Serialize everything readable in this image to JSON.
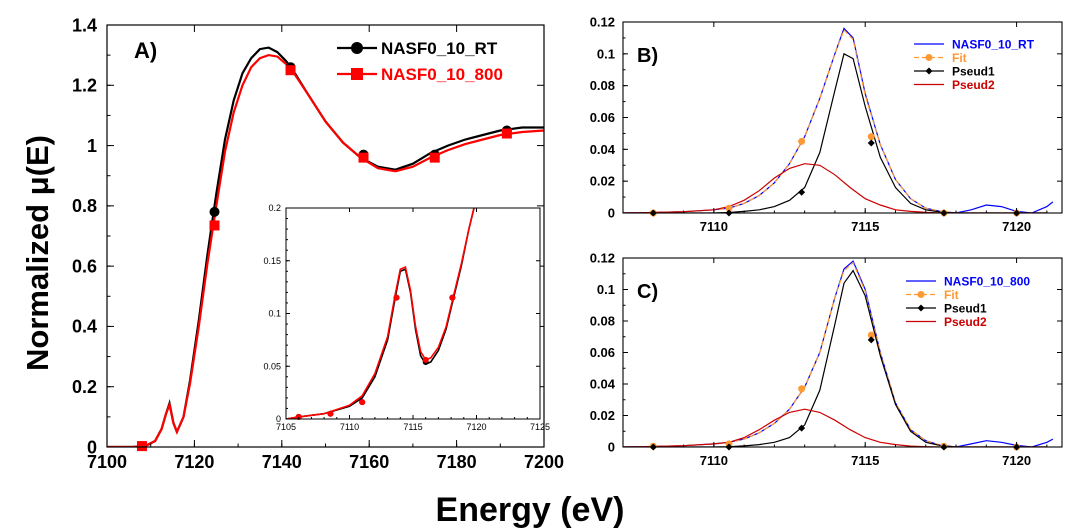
{
  "figure": {
    "ylabel": "Normalized μ(E)",
    "xlabel": "Energy (eV)"
  },
  "chart_data": [
    {
      "id": "A",
      "type": "line",
      "panel_label": "A)",
      "xlim": [
        7100,
        7200
      ],
      "ylim": [
        0,
        1.4
      ],
      "xticks": [
        7100,
        7120,
        7140,
        7160,
        7180,
        7200
      ],
      "yticks": [
        0,
        0.2,
        0.4,
        0.6,
        0.8,
        1,
        1.2,
        1.4
      ],
      "ytick_labels": [
        "0",
        "0.2",
        "0.4",
        "0.6",
        "0.8",
        "1",
        "1.2",
        "1.4"
      ],
      "legend_position": "top-right",
      "series": [
        {
          "name": "NASF0_10_RT",
          "color": "#000000",
          "marker": "circle",
          "x": [
            7100,
            7106,
            7109,
            7111,
            7112.5,
            7113.5,
            7114.3,
            7115.2,
            7116,
            7117.5,
            7119,
            7121,
            7123,
            7125,
            7127,
            7129,
            7131,
            7133,
            7135,
            7137,
            7139,
            7141,
            7143,
            7146,
            7150,
            7154,
            7158,
            7162,
            7166,
            7170,
            7174,
            7178,
            7182,
            7186,
            7190,
            7195,
            7200
          ],
          "y": [
            0,
            0,
            0.005,
            0.02,
            0.06,
            0.11,
            0.145,
            0.08,
            0.05,
            0.1,
            0.22,
            0.42,
            0.64,
            0.84,
            1.02,
            1.15,
            1.24,
            1.29,
            1.32,
            1.325,
            1.31,
            1.28,
            1.24,
            1.17,
            1.08,
            1.01,
            0.96,
            0.93,
            0.92,
            0.94,
            0.975,
            1.0,
            1.02,
            1.035,
            1.05,
            1.06,
            1.06
          ],
          "markers": [
            [
              7108,
              0.003
            ],
            [
              7124.6,
              0.78
            ],
            [
              7142,
              1.26
            ],
            [
              7158.7,
              0.97
            ],
            [
              7175,
              0.97
            ],
            [
              7191.5,
              1.05
            ]
          ]
        },
        {
          "name": "NASF0_10_800",
          "color": "#ff0000",
          "marker": "square",
          "x": [
            7100,
            7106,
            7109,
            7111,
            7112.5,
            7113.5,
            7114.3,
            7115.2,
            7116,
            7117.5,
            7119,
            7121,
            7123,
            7125,
            7127,
            7129,
            7131,
            7133,
            7135,
            7137,
            7139,
            7141,
            7143,
            7146,
            7150,
            7154,
            7158,
            7162,
            7166,
            7170,
            7174,
            7178,
            7182,
            7186,
            7190,
            7195,
            7200
          ],
          "y": [
            0,
            0,
            0.005,
            0.02,
            0.06,
            0.11,
            0.14,
            0.08,
            0.05,
            0.1,
            0.21,
            0.4,
            0.61,
            0.8,
            0.98,
            1.11,
            1.2,
            1.26,
            1.29,
            1.3,
            1.295,
            1.27,
            1.235,
            1.17,
            1.08,
            1.01,
            0.96,
            0.925,
            0.915,
            0.93,
            0.96,
            0.985,
            1.005,
            1.02,
            1.035,
            1.045,
            1.05
          ],
          "markers": [
            [
              7108,
              0.003
            ],
            [
              7124.6,
              0.735
            ],
            [
              7142,
              1.25
            ],
            [
              7158.7,
              0.96
            ],
            [
              7175,
              0.96
            ],
            [
              7191.5,
              1.04
            ]
          ]
        }
      ],
      "inset": {
        "type": "line",
        "xlim": [
          7105,
          7125
        ],
        "ylim": [
          0,
          0.2
        ],
        "xticks": [
          7105,
          7110,
          7115,
          7120,
          7125
        ],
        "yticks": [
          0,
          0.05,
          0.1,
          0.15,
          0.2
        ],
        "ytick_labels": [
          "0",
          "0.05",
          "0.1",
          "0.15",
          "0.2"
        ],
        "series": [
          {
            "name": "NASF0_10_RT",
            "color": "#000000",
            "x": [
              7105,
              7106,
              7108,
              7110,
              7111,
              7112,
              7113,
              7113.6,
              7114.0,
              7114.4,
              7114.8,
              7115.2,
              7115.6,
              7116.0,
              7116.4,
              7117,
              7117.6,
              7118.2,
              7118.8,
              7119.4,
              7119.8
            ],
            "y": [
              0,
              0.002,
              0.005,
              0.012,
              0.02,
              0.04,
              0.075,
              0.115,
              0.14,
              0.142,
              0.12,
              0.085,
              0.06,
              0.052,
              0.054,
              0.065,
              0.085,
              0.115,
              0.145,
              0.18,
              0.2
            ],
            "markers": [
              [
                7106,
                0.002
              ],
              [
                7108.5,
                0.005
              ],
              [
                7111,
                0.016
              ],
              [
                7113.7,
                0.115
              ],
              [
                7116,
                0.054
              ],
              [
                7118.1,
                0.115
              ]
            ]
          },
          {
            "name": "NASF0_10_800",
            "color": "#ff0000",
            "x": [
              7105,
              7106,
              7108,
              7110,
              7111,
              7112,
              7113,
              7113.6,
              7114.0,
              7114.4,
              7114.8,
              7115.2,
              7115.6,
              7116.0,
              7116.4,
              7117,
              7117.6,
              7118.2,
              7118.8,
              7119.4,
              7119.8
            ],
            "y": [
              0,
              0.002,
              0.005,
              0.013,
              0.022,
              0.043,
              0.078,
              0.118,
              0.142,
              0.144,
              0.122,
              0.088,
              0.064,
              0.056,
              0.058,
              0.068,
              0.087,
              0.117,
              0.147,
              0.18,
              0.2
            ],
            "markers": [
              [
                7106,
                0.002
              ],
              [
                7108.5,
                0.005
              ],
              [
                7111,
                0.016
              ],
              [
                7113.7,
                0.115
              ],
              [
                7116,
                0.056
              ],
              [
                7118.1,
                0.115
              ]
            ]
          }
        ]
      }
    },
    {
      "id": "B",
      "type": "line",
      "panel_label": "B)",
      "xlim": [
        7107,
        7121.5
      ],
      "ylim": [
        0,
        0.12
      ],
      "xticks": [
        7110,
        7115,
        7120
      ],
      "yticks": [
        0,
        0.02,
        0.04,
        0.06,
        0.08,
        0.1,
        0.12
      ],
      "ytick_labels": [
        "0",
        "0.02",
        "0.04",
        "0.06",
        "0.08",
        "0.1",
        "0.12"
      ],
      "legend_position": "top-right",
      "series": [
        {
          "name": "NASF0_10_RT",
          "color": "#0000ff",
          "x": [
            7107,
            7108,
            7109,
            7110,
            7110.5,
            7111,
            7111.5,
            7112,
            7112.5,
            7113,
            7113.5,
            7114,
            7114.3,
            7114.6,
            7115,
            7115.5,
            7116,
            7116.5,
            7117,
            7117.5,
            7118,
            7118.5,
            7119,
            7119.5,
            7120,
            7120.5,
            7121,
            7121.2
          ],
          "y": [
            0,
            0.0003,
            0.0008,
            0.002,
            0.003,
            0.006,
            0.011,
            0.019,
            0.031,
            0.048,
            0.072,
            0.1,
            0.116,
            0.11,
            0.075,
            0.043,
            0.021,
            0.009,
            0.003,
            0.001,
            0,
            0.002,
            0.005,
            0.004,
            0.001,
            0,
            0.004,
            0.007
          ]
        },
        {
          "name": "Fit",
          "color": "#ff9933",
          "marker": "circle",
          "x": [
            7107,
            7108,
            7109,
            7110,
            7110.5,
            7111,
            7111.5,
            7112,
            7112.5,
            7113,
            7113.5,
            7114,
            7114.3,
            7114.6,
            7115,
            7115.5,
            7116,
            7116.5,
            7117,
            7117.5,
            7118,
            7119,
            7120,
            7121
          ],
          "y": [
            0,
            0.0003,
            0.0008,
            0.002,
            0.003,
            0.006,
            0.011,
            0.019,
            0.031,
            0.048,
            0.072,
            0.1,
            0.115,
            0.109,
            0.074,
            0.043,
            0.021,
            0.009,
            0.003,
            0.001,
            0,
            0,
            0,
            0
          ],
          "markers": [
            [
              7108,
              0
            ],
            [
              7110.5,
              0.003
            ],
            [
              7112.9,
              0.045
            ],
            [
              7115.2,
              0.048
            ],
            [
              7117.6,
              0
            ],
            [
              7120,
              0
            ]
          ]
        },
        {
          "name": "Pseud1",
          "color": "#000000",
          "marker": "diamond",
          "x": [
            7107,
            7108,
            7109,
            7110,
            7110.5,
            7111,
            7111.5,
            7112,
            7112.5,
            7113,
            7113.5,
            7114,
            7114.3,
            7114.6,
            7115,
            7115.5,
            7116,
            7116.5,
            7117,
            7117.5,
            7118,
            7119,
            7120,
            7121
          ],
          "y": [
            0,
            0,
            0,
            0,
            0.0003,
            0.001,
            0.002,
            0.004,
            0.008,
            0.016,
            0.038,
            0.077,
            0.1,
            0.097,
            0.067,
            0.035,
            0.016,
            0.006,
            0.002,
            0.0005,
            0,
            0,
            0,
            0
          ],
          "markers": [
            [
              7108,
              0
            ],
            [
              7110.5,
              0
            ],
            [
              7112.9,
              0.013
            ],
            [
              7115.2,
              0.044
            ],
            [
              7117.6,
              0
            ],
            [
              7120,
              0
            ]
          ]
        },
        {
          "name": "Pseud2",
          "color": "#cc0000",
          "x": [
            7107,
            7108,
            7109,
            7110,
            7110.5,
            7111,
            7111.5,
            7112,
            7112.5,
            7113,
            7113.5,
            7114,
            7114.5,
            7115,
            7115.5,
            7116,
            7116.5,
            7117,
            7117.5,
            7118,
            7119,
            7120,
            7121
          ],
          "y": [
            0,
            0.0003,
            0.0008,
            0.002,
            0.004,
            0.008,
            0.014,
            0.022,
            0.028,
            0.031,
            0.03,
            0.024,
            0.016,
            0.009,
            0.005,
            0.002,
            0.001,
            0.0004,
            0,
            0,
            0,
            0,
            0
          ]
        }
      ]
    },
    {
      "id": "C",
      "type": "line",
      "panel_label": "C)",
      "xlim": [
        7107,
        7121.5
      ],
      "ylim": [
        0,
        0.12
      ],
      "xticks": [
        7110,
        7115,
        7120
      ],
      "yticks": [
        0,
        0.02,
        0.04,
        0.06,
        0.08,
        0.1,
        0.12
      ],
      "ytick_labels": [
        "0",
        "0.02",
        "0.04",
        "0.06",
        "0.08",
        "0.1",
        "0.12"
      ],
      "legend_position": "top-right",
      "series": [
        {
          "name": "NASF0_10_800",
          "color": "#0000ff",
          "x": [
            7107,
            7108,
            7109,
            7110,
            7110.5,
            7111,
            7111.5,
            7112,
            7112.5,
            7113,
            7113.5,
            7114,
            7114.3,
            7114.6,
            7115,
            7115.5,
            7116,
            7116.5,
            7117,
            7117.5,
            7118,
            7118.5,
            7119,
            7119.5,
            7120,
            7120.5,
            7121,
            7121.2
          ],
          "y": [
            0,
            0.0003,
            0.0008,
            0.002,
            0.003,
            0.005,
            0.009,
            0.015,
            0.024,
            0.038,
            0.06,
            0.095,
            0.113,
            0.118,
            0.1,
            0.06,
            0.028,
            0.011,
            0.004,
            0.001,
            0,
            0.002,
            0.004,
            0.003,
            0.001,
            0,
            0.003,
            0.005
          ]
        },
        {
          "name": "Fit",
          "color": "#ff9933",
          "marker": "circle",
          "x": [
            7107,
            7108,
            7109,
            7110,
            7110.5,
            7111,
            7111.5,
            7112,
            7112.5,
            7113,
            7113.5,
            7114,
            7114.3,
            7114.6,
            7115,
            7115.5,
            7116,
            7116.5,
            7117,
            7117.5,
            7118,
            7119,
            7120,
            7121
          ],
          "y": [
            0,
            0.0003,
            0.0008,
            0.002,
            0.003,
            0.005,
            0.009,
            0.015,
            0.024,
            0.038,
            0.06,
            0.095,
            0.112,
            0.117,
            0.099,
            0.06,
            0.028,
            0.011,
            0.004,
            0.001,
            0,
            0,
            0,
            0
          ],
          "markers": [
            [
              7108,
              0.0005
            ],
            [
              7110.5,
              0.002
            ],
            [
              7112.9,
              0.037
            ],
            [
              7115.2,
              0.071
            ],
            [
              7117.6,
              0.0005
            ],
            [
              7120,
              0
            ]
          ]
        },
        {
          "name": "Pseud1",
          "color": "#000000",
          "marker": "diamond",
          "x": [
            7107,
            7108,
            7109,
            7110,
            7110.5,
            7111,
            7111.5,
            7112,
            7112.5,
            7113,
            7113.5,
            7114,
            7114.3,
            7114.6,
            7115,
            7115.5,
            7116,
            7116.5,
            7117,
            7117.5,
            7118,
            7119,
            7120,
            7121
          ],
          "y": [
            0,
            0,
            0,
            0,
            0.0002,
            0.0007,
            0.0015,
            0.003,
            0.006,
            0.014,
            0.036,
            0.078,
            0.104,
            0.112,
            0.096,
            0.058,
            0.027,
            0.01,
            0.003,
            0.0008,
            0,
            0,
            0,
            0
          ],
          "markers": [
            [
              7108,
              0
            ],
            [
              7110.5,
              0
            ],
            [
              7112.9,
              0.012
            ],
            [
              7115.2,
              0.068
            ],
            [
              7117.6,
              0
            ],
            [
              7120,
              0
            ]
          ]
        },
        {
          "name": "Pseud2",
          "color": "#cc0000",
          "x": [
            7107,
            7108,
            7109,
            7110,
            7110.5,
            7111,
            7111.5,
            7112,
            7112.5,
            7113,
            7113.5,
            7114,
            7114.5,
            7115,
            7115.5,
            7116,
            7116.5,
            7117,
            7117.5,
            7118,
            7119,
            7120,
            7121
          ],
          "y": [
            0,
            0.0003,
            0.0008,
            0.002,
            0.003,
            0.006,
            0.011,
            0.017,
            0.022,
            0.024,
            0.022,
            0.017,
            0.011,
            0.006,
            0.003,
            0.0015,
            0.0006,
            0.0002,
            0,
            0,
            0,
            0,
            0
          ]
        }
      ]
    }
  ]
}
